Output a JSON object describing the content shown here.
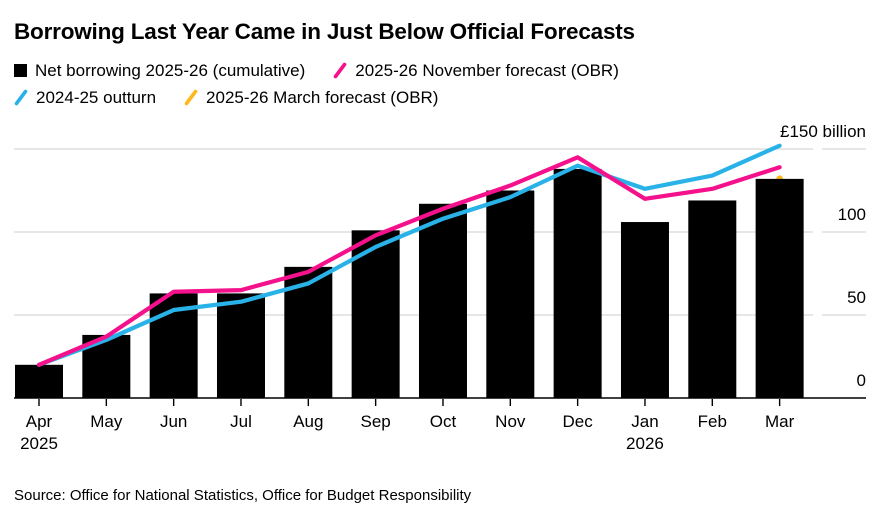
{
  "title": "Borrowing Last Year Came in Just Below Official Forecasts",
  "legend": {
    "items": [
      {
        "label": "Net borrowing 2025-26 (cumulative)",
        "marker": "square",
        "color": "#000000"
      },
      {
        "label": "2025-26 November forecast (OBR)",
        "marker": "slash",
        "color": "#f5108c"
      },
      {
        "label": "2024-25 outturn",
        "marker": "slash",
        "color": "#29b2e8"
      },
      {
        "label": "2025-26 March forecast (OBR)",
        "marker": "slash",
        "color": "#ffb81c"
      }
    ]
  },
  "chart_data": {
    "type": "bar",
    "subtype": "bar-with-line-overlays",
    "categories": [
      "Apr",
      "May",
      "Jun",
      "Jul",
      "Aug",
      "Sep",
      "Oct",
      "Nov",
      "Dec",
      "Jan",
      "Feb",
      "Mar"
    ],
    "year_labels": [
      {
        "index": 0,
        "text": "2025"
      },
      {
        "index": 9,
        "text": "2026"
      }
    ],
    "unit": "£ billion",
    "ylim": [
      0,
      150
    ],
    "yticks": [
      {
        "value": 0,
        "label": "0"
      },
      {
        "value": 50,
        "label": "50"
      },
      {
        "value": 100,
        "label": "100"
      },
      {
        "value": 150,
        "label": "£150 billion"
      }
    ],
    "grid": true,
    "legend_position": "top",
    "series": [
      {
        "name": "Net borrowing 2025-26 (cumulative)",
        "type": "bar",
        "color": "#000000",
        "values": [
          20,
          38,
          63,
          63,
          79,
          101,
          117,
          125,
          138,
          106,
          119,
          132
        ]
      },
      {
        "name": "2025-26 November forecast (OBR)",
        "type": "line",
        "color": "#f5108c",
        "values": [
          20,
          37,
          64,
          65,
          76,
          98,
          114,
          128,
          145,
          120,
          126,
          139
        ]
      },
      {
        "name": "2024-25 outturn",
        "type": "line",
        "color": "#29b2e8",
        "values": [
          20,
          35,
          53,
          58,
          69,
          91,
          108,
          121,
          140,
          126,
          134,
          152
        ]
      },
      {
        "name": "2025-26 March forecast (OBR)",
        "type": "point",
        "color": "#ffb81c",
        "values": [
          null,
          null,
          null,
          null,
          null,
          null,
          null,
          null,
          null,
          null,
          null,
          133
        ],
        "note": "only the final point is visible, peeking above the Mar bar"
      }
    ]
  },
  "source": "Source: Office for National Statistics, Office for Budget Responsibility"
}
